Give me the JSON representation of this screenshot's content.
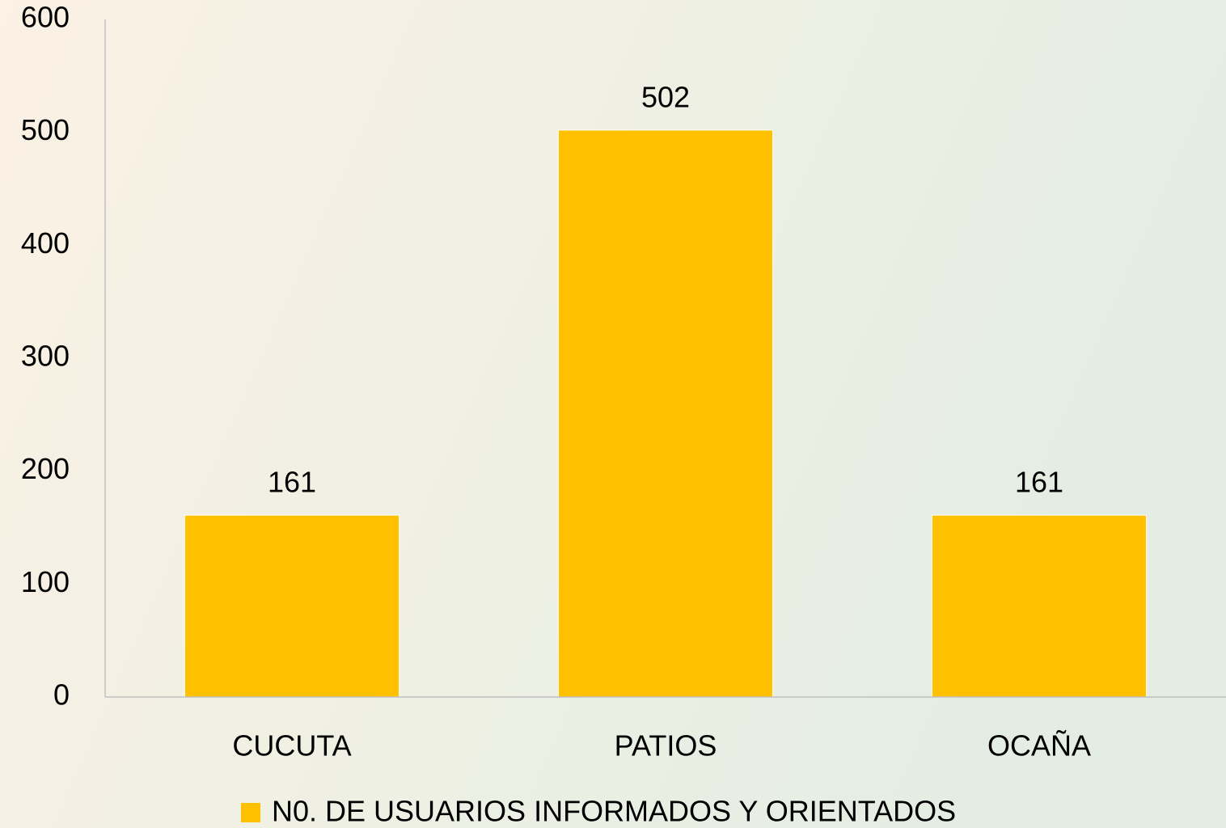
{
  "chart_data": {
    "type": "bar",
    "categories": [
      "CUCUTA",
      "PATIOS",
      "OCAÑA"
    ],
    "series": [
      {
        "name": "N0. DE USUARIOS INFORMADOS Y ORIENTADOS",
        "color": "#FFC000",
        "values": [
          161,
          502,
          161
        ]
      }
    ],
    "ylim": [
      0,
      600
    ],
    "yticks": [
      0,
      100,
      200,
      300,
      400,
      500,
      600
    ],
    "grid": false,
    "legend": "bottom",
    "data_labels": true
  }
}
